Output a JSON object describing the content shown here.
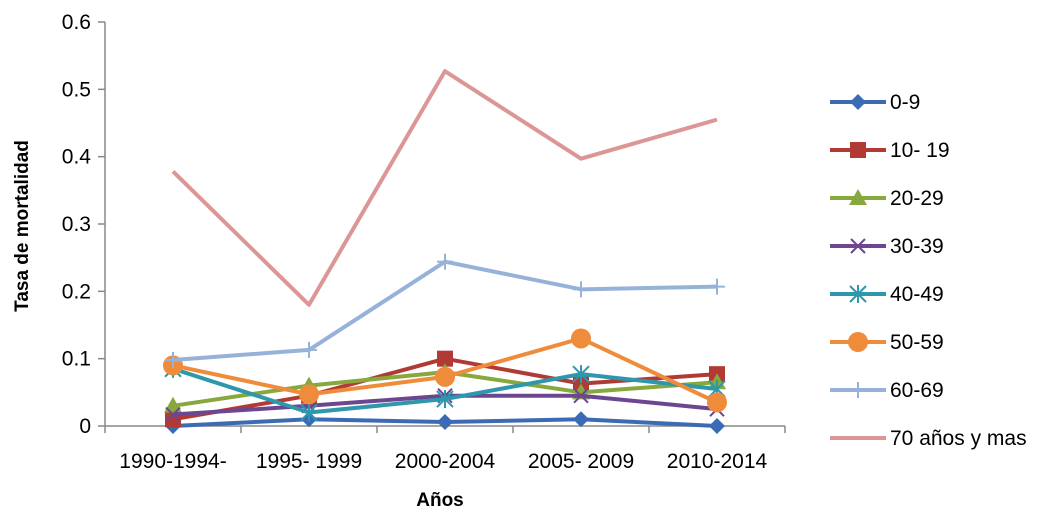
{
  "chart_data": {
    "type": "line",
    "title": "",
    "xlabel": "Años",
    "ylabel": "Tasa de mortalidad",
    "categories": [
      "1990-1994-",
      "1995- 1999",
      "2000-2004",
      "2005- 2009",
      "2010-2014"
    ],
    "ylim": [
      0,
      0.6
    ],
    "yticks": [
      "0",
      "0.1",
      "0.2",
      "0.3",
      "0.4",
      "0.5",
      "0.6"
    ],
    "legend_position": "right",
    "grid": false,
    "series": [
      {
        "name": "0-9",
        "color": "#3c6bb5",
        "marker": "diamond",
        "values": [
          0.0,
          0.01,
          0.006,
          0.01,
          0.0
        ]
      },
      {
        "name": "10- 19",
        "color": "#b23a35",
        "marker": "square",
        "values": [
          0.01,
          0.045,
          0.1,
          0.063,
          0.077
        ]
      },
      {
        "name": "20-29",
        "color": "#86a83d",
        "marker": "triangle",
        "values": [
          0.03,
          0.06,
          0.08,
          0.05,
          0.065
        ]
      },
      {
        "name": "30-39",
        "color": "#6c4690",
        "marker": "x",
        "values": [
          0.017,
          0.03,
          0.045,
          0.045,
          0.025
        ]
      },
      {
        "name": "40-49",
        "color": "#2e97ab",
        "marker": "asterisk",
        "values": [
          0.085,
          0.02,
          0.04,
          0.077,
          0.055
        ]
      },
      {
        "name": "50-59",
        "color": "#ee8c3c",
        "marker": "circle",
        "values": [
          0.09,
          0.047,
          0.073,
          0.13,
          0.035
        ]
      },
      {
        "name": "60-69",
        "color": "#97b2d9",
        "marker": "plus",
        "values": [
          0.098,
          0.113,
          0.244,
          0.203,
          0.207
        ]
      },
      {
        "name": "70 años y mas",
        "color": "#db9695",
        "marker": "none",
        "values": [
          0.378,
          0.18,
          0.527,
          0.397,
          0.455
        ]
      }
    ]
  }
}
